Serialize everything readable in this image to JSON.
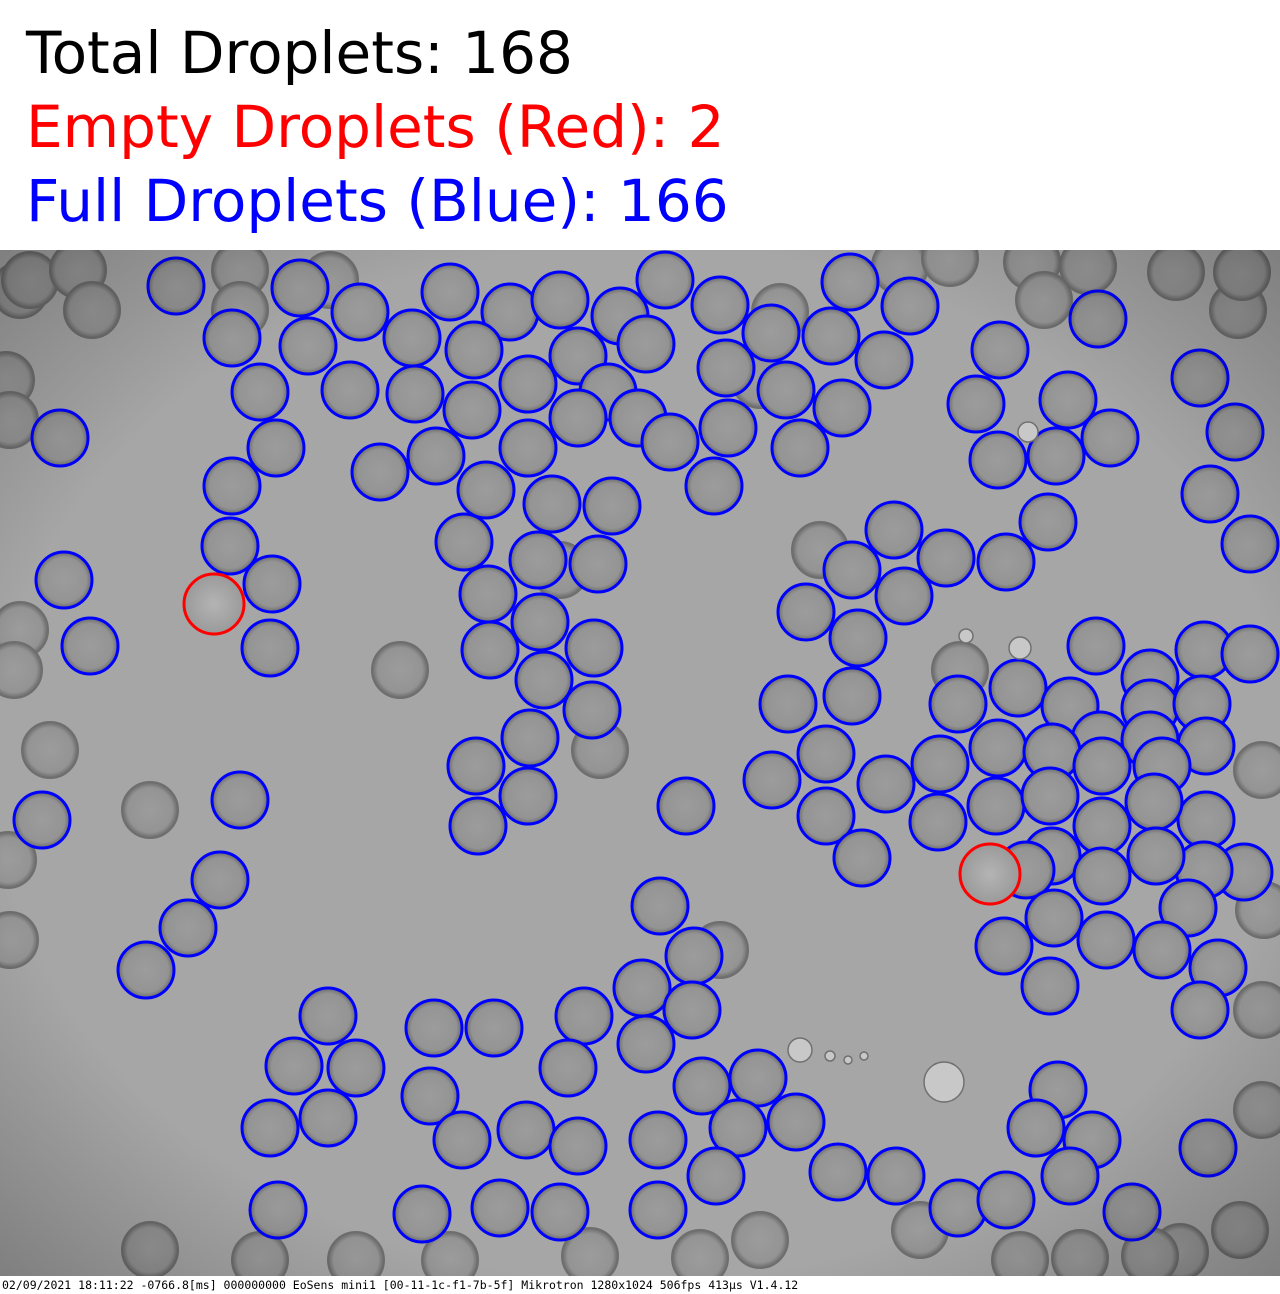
{
  "counts": {
    "total_label": "Total Droplets: 168",
    "empty_label": "Empty Droplets (Red): 2",
    "full_label": "Full Droplets (Blue): 166"
  },
  "colors": {
    "total_text": "#000000",
    "empty": "#ff0000",
    "full": "#0000ff",
    "background": "#a8a8a8"
  },
  "footer": {
    "metadata": "02/09/2021 18:11:22 -0766.8[ms] 000000000 EoSens mini1 [00-11-1c-f1-7b-5f] Mikrotron 1280x1024 506fps 413µs V1.4.12"
  }
}
